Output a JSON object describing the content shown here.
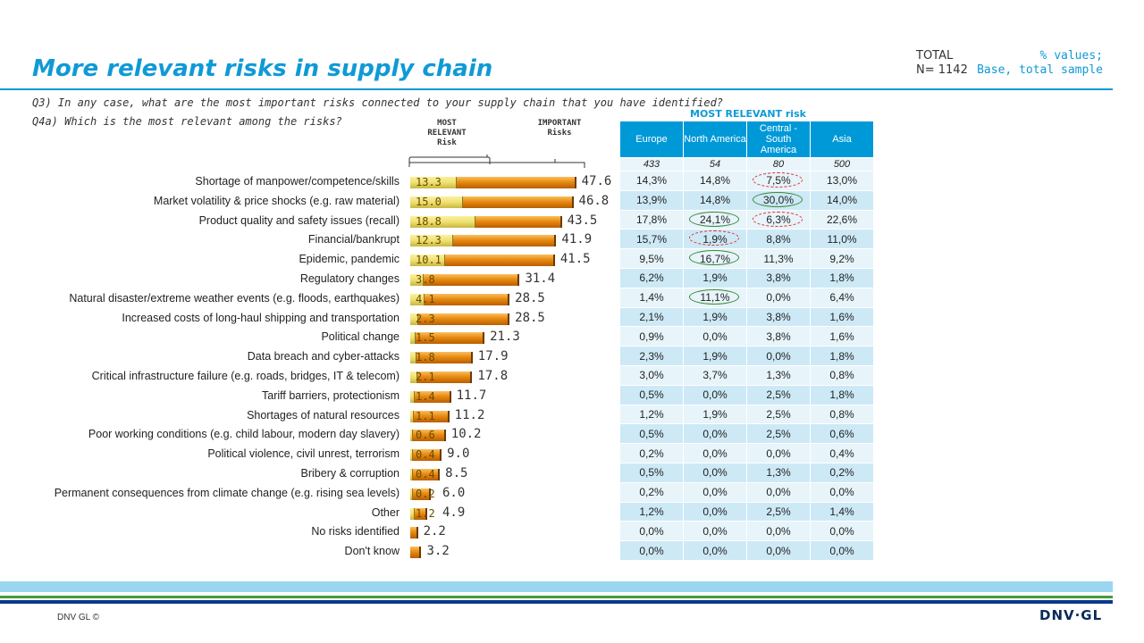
{
  "header": {
    "title": "More relevant risks in supply chain",
    "total_label": "TOTAL",
    "total_n": "N= 1142",
    "base_line1": "% values;",
    "base_line2": "Base, total sample"
  },
  "questions": {
    "q3": "Q3) In any case, what are the most important risks connected to your supply  chain that you have identified?",
    "q4a": "Q4a) Which is the most relevant among the risks?"
  },
  "legend": {
    "most_relevant": "MOST RELEVANT Risk",
    "important": "IMPORTANT Risks"
  },
  "colors": {
    "accent": "#0f9ad6",
    "important_bar": "#e88a10",
    "most_relevant_bar": "#efe070",
    "table_header": "#0099d8"
  },
  "chart_data": {
    "type": "bar",
    "orientation": "horizontal",
    "categories": [
      "Shortage of manpower/competence/skills",
      "Market volatility & price shocks (e.g. raw material)",
      "Product quality and safety issues (recall)",
      "Financial/bankrupt",
      "Epidemic, pandemic",
      "Regulatory changes",
      "Natural disaster/extreme weather events (e.g. floods, earthquakes)",
      "Increased costs of long-haul shipping and transportation",
      "Political change",
      "Data breach and cyber-attacks",
      "Critical infrastructure failure (e.g. roads, bridges, IT & telecom)",
      "Tariff barriers, protectionism",
      "Shortages of natural resources",
      "Poor working conditions (e.g. child labour, modern day slavery)",
      "Political violence, civil  unrest, terrorism",
      "Bribery & corruption",
      "Permanent consequences from climate change (e.g. rising sea levels)",
      "Other",
      "No risks identified",
      "Don't know"
    ],
    "series": [
      {
        "name": "IMPORTANT Risks",
        "values": [
          47.6,
          46.8,
          43.5,
          41.9,
          41.5,
          31.4,
          28.5,
          28.5,
          21.3,
          17.9,
          17.8,
          11.7,
          11.2,
          10.2,
          9.0,
          8.5,
          6.0,
          4.9,
          2.2,
          3.2
        ]
      },
      {
        "name": "MOST RELEVANT Risk",
        "values": [
          13.3,
          15.0,
          18.8,
          12.3,
          10.1,
          3.8,
          4.1,
          2.3,
          1.5,
          1.8,
          2.1,
          1.4,
          1.1,
          0.6,
          0.4,
          0.4,
          0.2,
          1.2,
          null,
          null
        ]
      }
    ]
  },
  "table": {
    "title": "MOST RELEVANT risk",
    "columns": [
      "Europe",
      "North America",
      "Central - South America",
      "Asia"
    ],
    "n": [
      "433",
      "54",
      "80",
      "500"
    ],
    "rows": [
      [
        "14,3%",
        "14,8%",
        "7,5%",
        "13,0%"
      ],
      [
        "13,9%",
        "14,8%",
        "30,0%",
        "14,0%"
      ],
      [
        "17,8%",
        "24,1%",
        "6,3%",
        "22,6%"
      ],
      [
        "15,7%",
        "1,9%",
        "8,8%",
        "11,0%"
      ],
      [
        "9,5%",
        "16,7%",
        "11,3%",
        "9,2%"
      ],
      [
        "6,2%",
        "1,9%",
        "3,8%",
        "1,8%"
      ],
      [
        "1,4%",
        "11,1%",
        "0,0%",
        "6,4%"
      ],
      [
        "2,1%",
        "1,9%",
        "3,8%",
        "1,6%"
      ],
      [
        "0,9%",
        "0,0%",
        "3,8%",
        "1,6%"
      ],
      [
        "2,3%",
        "1,9%",
        "0,0%",
        "1,8%"
      ],
      [
        "3,0%",
        "3,7%",
        "1,3%",
        "0,8%"
      ],
      [
        "0,5%",
        "0,0%",
        "2,5%",
        "1,8%"
      ],
      [
        "1,2%",
        "1,9%",
        "2,5%",
        "0,8%"
      ],
      [
        "0,5%",
        "0,0%",
        "2,5%",
        "0,6%"
      ],
      [
        "0,2%",
        "0,0%",
        "0,0%",
        "0,4%"
      ],
      [
        "0,5%",
        "0,0%",
        "1,3%",
        "0,2%"
      ],
      [
        "0,2%",
        "0,0%",
        "0,0%",
        "0,0%"
      ],
      [
        "1,2%",
        "0,0%",
        "2,5%",
        "1,4%"
      ],
      [
        "0,0%",
        "0,0%",
        "0,0%",
        "0,0%"
      ],
      [
        "0,0%",
        "0,0%",
        "0,0%",
        "0,0%"
      ]
    ],
    "highlights_low": [
      [
        0,
        2
      ],
      [
        2,
        2
      ],
      [
        3,
        1
      ]
    ],
    "highlights_high": [
      [
        1,
        2
      ],
      [
        2,
        1
      ],
      [
        4,
        1
      ],
      [
        6,
        1
      ]
    ]
  },
  "footer": {
    "copyright": "DNV GL ©",
    "logo": "DNV·GL"
  }
}
